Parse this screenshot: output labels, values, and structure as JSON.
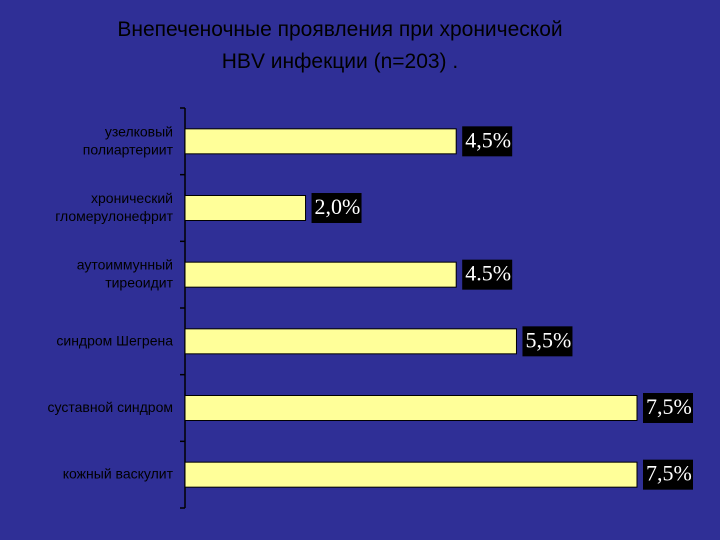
{
  "slide": {
    "title_line1": "Внепеченочные проявления при хронической",
    "title_line2": "HBV инфекции (n=203) ."
  },
  "chart_data": {
    "type": "bar",
    "orientation": "horizontal",
    "title": "Внепеченочные проявления при хронической HBV инфекции (n=203) .",
    "categories": [
      [
        "узелковый",
        "полиартериит"
      ],
      [
        "хронический",
        "гломерулонефрит"
      ],
      [
        "аутоиммунный",
        "тиреоидит"
      ],
      [
        "синдром Шегрена"
      ],
      [
        "суставной синдром"
      ],
      [
        "кожный васкулит"
      ]
    ],
    "values": [
      4.5,
      2.0,
      4.5,
      5.5,
      7.5,
      7.5
    ],
    "value_labels": [
      "4,5%",
      "2,0%",
      "4.5%",
      "5,5%",
      "7,5%",
      "7,5%"
    ],
    "xlim": [
      0,
      7.5
    ],
    "grid": false,
    "legend": "none",
    "colors": {
      "background": "#2f2f96",
      "bar_fill": "#ffff99",
      "bar_stroke": "#000000",
      "label_box": "#000000",
      "label_text": "#ffffff",
      "axis": "#000000"
    }
  }
}
